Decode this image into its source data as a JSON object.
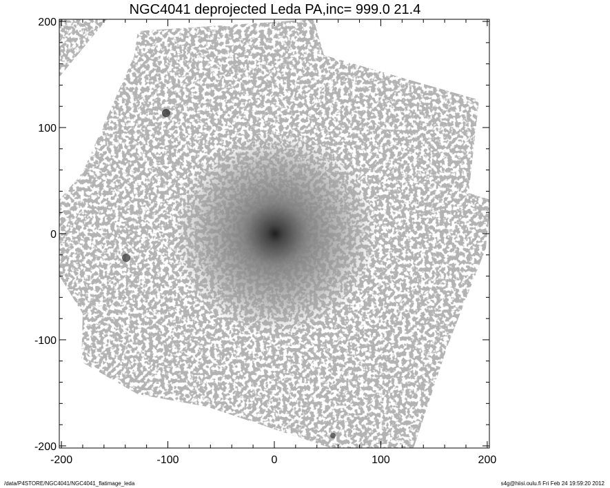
{
  "chart_data": {
    "type": "heatmap",
    "title": "NGC4041 deprojected Leda  PA,inc= 999.0  21.4",
    "xlabel": "",
    "ylabel": "",
    "xlim": [
      -202,
      202
    ],
    "ylim": [
      -202,
      202
    ],
    "xticks": [
      -200,
      -100,
      0,
      100,
      200
    ],
    "yticks": [
      -200,
      -100,
      0,
      100,
      200
    ],
    "minor_tick_step": 20,
    "colormap": "grayscale inverted",
    "image_color": "#7a7a7a",
    "grid": false
  },
  "footer": {
    "left": "/data/P4STORE/NGC4041/NGC4041_flatimage_leda",
    "right": "s4g@hiisi.oulu.fi  Fri Feb 24 19:59:20 2012"
  }
}
